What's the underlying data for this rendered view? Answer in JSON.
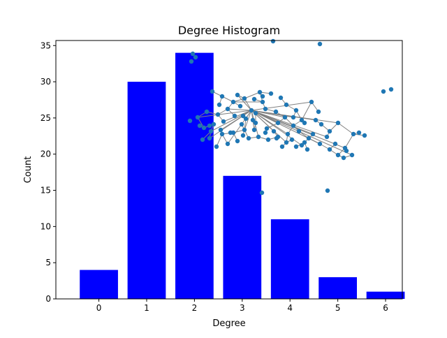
{
  "chart_data": {
    "type": "bar",
    "title": "Degree Histogram",
    "xlabel": "Degree",
    "ylabel": "Count",
    "categories": [
      0,
      1,
      2,
      3,
      4,
      5,
      6
    ],
    "values": [
      4,
      30,
      34,
      17,
      11,
      3,
      1
    ],
    "bar_color": "#0000ff",
    "xlim": [
      -0.9,
      6.35
    ],
    "ylim": [
      0,
      35.7
    ],
    "xticks": [
      0,
      1,
      2,
      3,
      4,
      5,
      6
    ],
    "yticks": [
      0,
      5,
      10,
      15,
      20,
      25,
      30,
      35
    ],
    "grid": false,
    "legend": "none",
    "inset": {
      "type": "network",
      "node_color": "#1f77b4",
      "edge_color": "#808080"
    }
  }
}
